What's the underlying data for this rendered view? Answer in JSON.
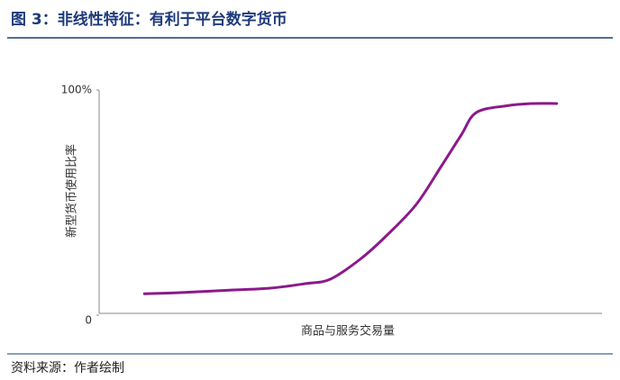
{
  "chart_data": {
    "type": "line",
    "title": "图 3：非线性特征：有利于平台数字货币",
    "x_label": "商品与服务交易量",
    "y_label": "新型货币使用比率",
    "x": [
      9,
      16,
      25,
      34,
      41,
      46,
      52,
      57,
      63,
      68,
      72,
      75,
      81,
      86,
      91
    ],
    "values": [
      9.5,
      10,
      11,
      12,
      14,
      16,
      25,
      35,
      49,
      66,
      80,
      90,
      93,
      94,
      94
    ],
    "color": "#8b1a8b",
    "xlim": [
      0,
      100
    ],
    "ylim": [
      0,
      100
    ],
    "yticks": [
      0,
      {
        "value": 100,
        "label": "100%"
      }
    ],
    "source": "资料来源：作者绘制"
  }
}
